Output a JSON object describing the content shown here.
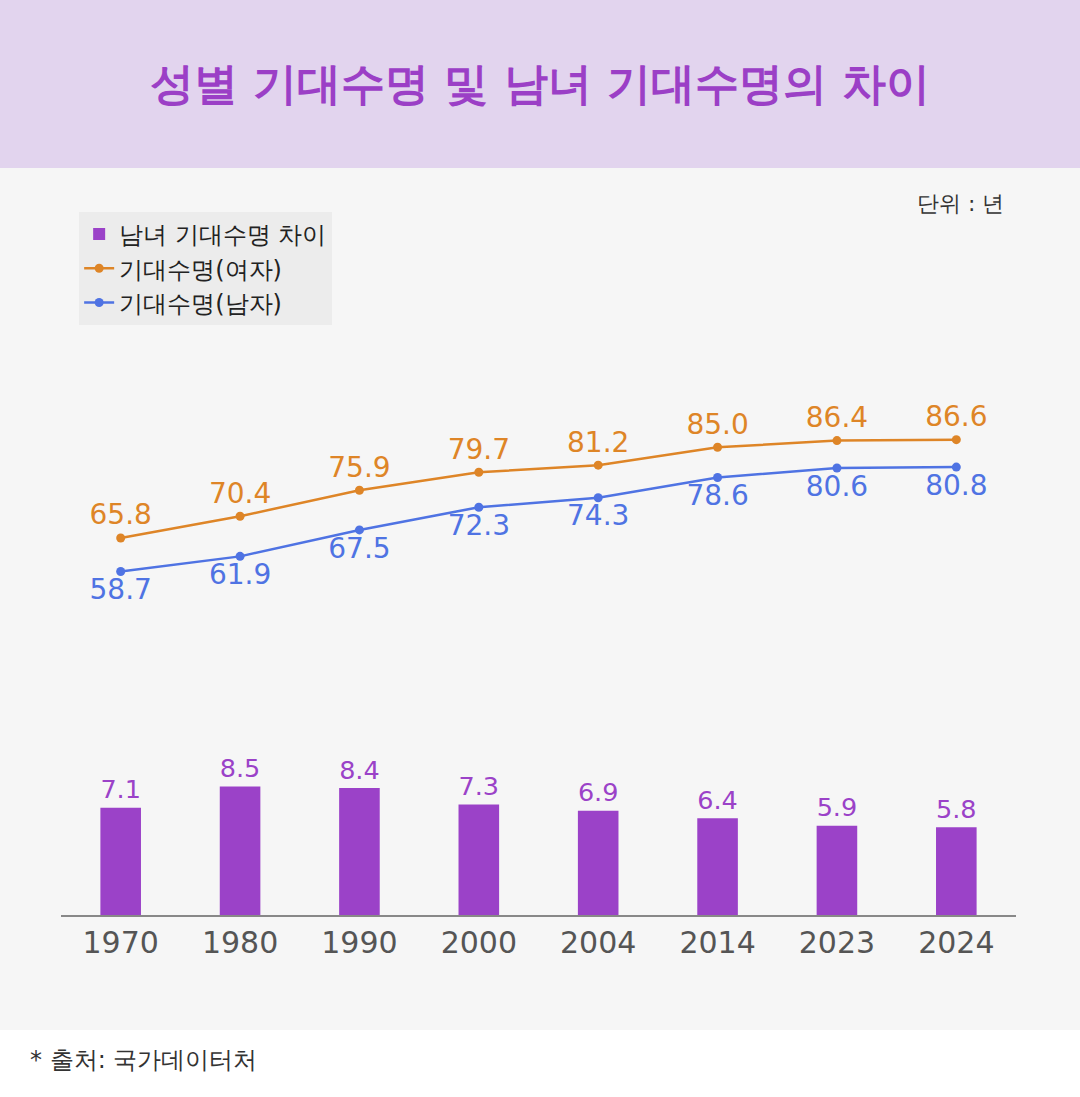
{
  "chart_data": {
    "type": "line",
    "title": "성별 기대수명 및 남녀 기대수명의 차이",
    "unit_label": "단위 : 년",
    "source": "* 출처: 국가데이터처",
    "categories": [
      "1970",
      "1980",
      "1990",
      "2000",
      "2004",
      "2014",
      "2023",
      "2024"
    ],
    "series": [
      {
        "name": "남녀 기대수명 차이",
        "type": "bar",
        "axis": "y2",
        "color": "#9b42c8",
        "values": [
          7.1,
          8.5,
          8.4,
          7.3,
          6.9,
          6.4,
          5.9,
          5.8
        ]
      },
      {
        "name": "기대수명(여자)",
        "type": "line",
        "color": "#de8527",
        "marker": "circle",
        "line_style": "solid",
        "values": [
          65.8,
          70.4,
          75.9,
          79.7,
          81.2,
          85.0,
          86.4,
          86.6
        ],
        "value_labels": [
          "65.8",
          "70.4",
          "75.9",
          "79.7",
          "81.2",
          "85.0",
          "86.4",
          "86.6"
        ]
      },
      {
        "name": "기대수명(남자)",
        "type": "line",
        "color": "#4f73e3",
        "marker": "circle",
        "line_style": "solid",
        "values": [
          58.7,
          61.9,
          67.5,
          72.3,
          74.3,
          78.6,
          80.6,
          80.8
        ]
      }
    ],
    "ylim": [
      40,
      106
    ],
    "y2lim": [
      0,
      15
    ],
    "data_labels": true,
    "legend": "top-left",
    "tick_labels": "x",
    "grid": false
  }
}
